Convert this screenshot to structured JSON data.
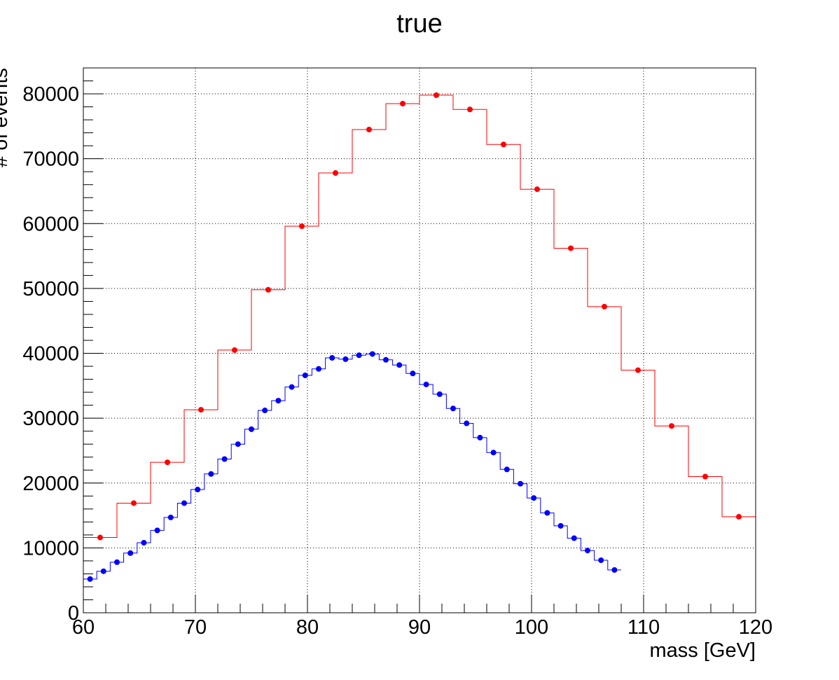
{
  "chart_data": {
    "type": "histogram",
    "title": "true",
    "xlabel": "mass [GeV]",
    "ylabel": "# of events",
    "xlim": [
      60,
      120
    ],
    "ylim": [
      0,
      84000
    ],
    "grid": true,
    "x_ticks": [
      60,
      70,
      80,
      90,
      100,
      110,
      120
    ],
    "y_ticks": [
      0,
      10000,
      20000,
      30000,
      40000,
      50000,
      60000,
      70000,
      80000
    ],
    "series": [
      {
        "color": "#ff0000",
        "bin_start": 60,
        "bin_width": 3,
        "values": [
          11600,
          16900,
          23200,
          31300,
          40500,
          49800,
          59600,
          67800,
          74500,
          78500,
          79800,
          77600,
          72200,
          65300,
          56200,
          47200,
          37400,
          28800,
          21000,
          14800
        ]
      },
      {
        "color": "#0000ff",
        "bin_start": 60,
        "bin_width": 1.2,
        "values": [
          5200,
          6400,
          7800,
          9200,
          10800,
          12700,
          14700,
          16900,
          19000,
          21400,
          23700,
          26000,
          28300,
          31200,
          32700,
          34800,
          36600,
          37600,
          39300,
          39100,
          39700,
          39900,
          39000,
          38200,
          36900,
          35200,
          33700,
          31500,
          29200,
          27000,
          24700,
          22100,
          19900,
          17700,
          15400,
          13400,
          11500,
          9600,
          8100,
          6600
        ]
      }
    ]
  }
}
